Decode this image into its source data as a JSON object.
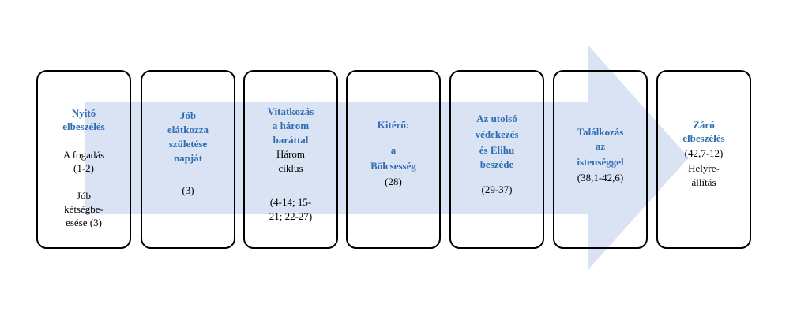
{
  "boxes": [
    {
      "title_lines": [
        "Nyitó",
        "elbeszélés"
      ],
      "text_lines": [
        "A fogadás",
        "(1-2)",
        "Jób",
        "kétségbe-",
        "esése (3)"
      ]
    },
    {
      "title_lines": [
        "Jób",
        "elátkozza",
        "születése",
        "napját"
      ],
      "text_lines": [
        "(3)"
      ]
    },
    {
      "title_lines": [
        "Vitatkozás",
        "a három",
        "baráttal"
      ],
      "text_lines": [
        "Három",
        "ciklus",
        "(4-14; 15-",
        "21; 22-27)"
      ]
    },
    {
      "title_lines": [
        "Kitérő:",
        "a",
        "Bölcsesség"
      ],
      "text_lines": [
        "(28)"
      ]
    },
    {
      "title_lines": [
        "Az utolsó",
        "védekezés",
        "és Elihu",
        "beszéde"
      ],
      "text_lines": [
        "(29-37)"
      ]
    },
    {
      "title_lines": [
        "Találkozás",
        "az",
        "istenséggel"
      ],
      "text_lines": [
        "(38,1-42,6)"
      ]
    },
    {
      "title_lines": [
        "Záró",
        "elbeszélés"
      ],
      "text_lines": [
        "(42,7-12)",
        "Helyre-",
        "állítás"
      ]
    }
  ]
}
